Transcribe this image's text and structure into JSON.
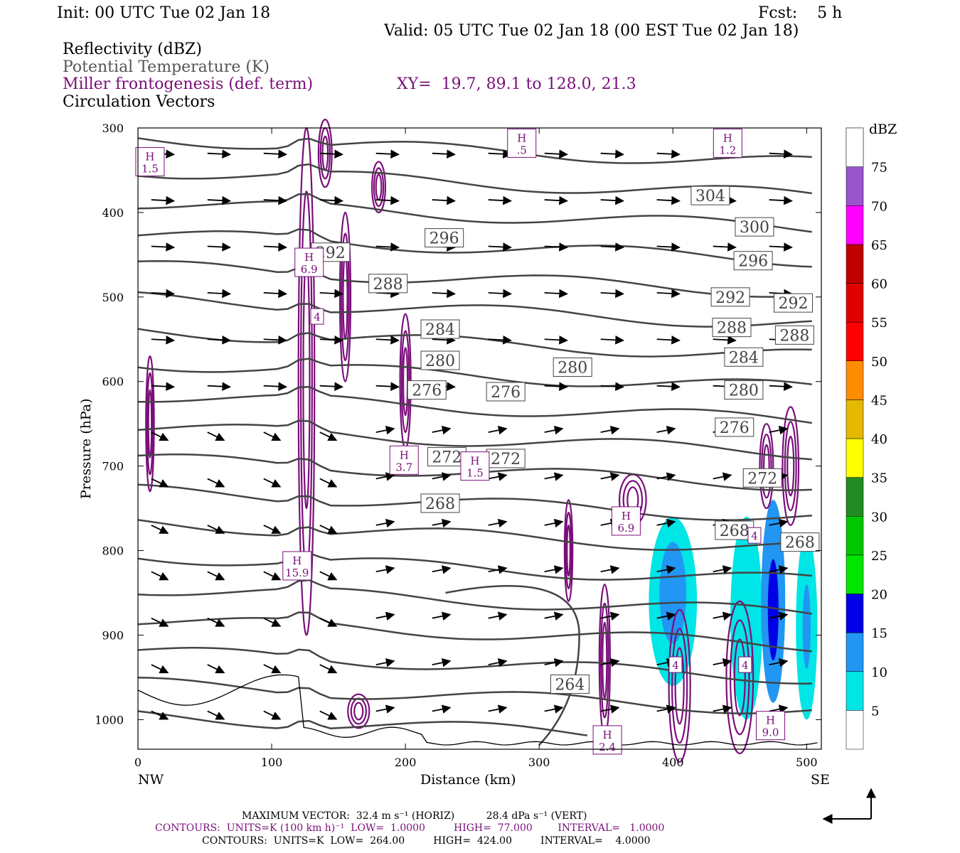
{
  "header": {
    "init": "Init: 00 UTC Tue 02 Jan 18",
    "fcst": "Fcst:    5 h",
    "valid": "Valid: 05 UTC Tue 02 Jan 18 (00 EST Tue 02 Jan 18)",
    "field1": "Reflectivity (dBZ)",
    "field2": "Potential Temperature (K)",
    "field3": "Miller frontogenesis (def. term)",
    "xy": "XY=  19.7, 89.1 to 128.0, 21.3",
    "field4": "Circulation Vectors"
  },
  "axes": {
    "ylabel": "Pressure (hPa)",
    "xlabel": "Distance (km)",
    "left_end": "NW",
    "right_end": "SE"
  },
  "colorbar": {
    "title": "dBZ",
    "levels": [
      "5",
      "10",
      "15",
      "20",
      "25",
      "30",
      "35",
      "40",
      "45",
      "50",
      "55",
      "60",
      "65",
      "70",
      "75"
    ],
    "colors": [
      "#00e5e5",
      "#2196f3",
      "#0000e6",
      "#00e600",
      "#00c800",
      "#228b22",
      "#ffff00",
      "#e6b800",
      "#ff8c00",
      "#ff0000",
      "#e00000",
      "#c00000",
      "#ff00ff",
      "#9955cc",
      "#ffffff"
    ]
  },
  "footer": {
    "line1": "MAXIMUM VECTOR:  32.4 m s⁻¹ (HORIZ)          28.4 dPa s⁻¹ (VERT)",
    "line2": "CONTOURS:  UNITS=K (100 km h)⁻¹  LOW=  1.0000         HIGH=  77.000        INTERVAL=   1.0000",
    "line3": "CONTOURS:  UNITS=K  LOW=  264.00         HIGH=  424.00         INTERVAL=    4.0000"
  },
  "chart_data": {
    "type": "cross-section",
    "x_axis": {
      "label": "Distance (km)",
      "range": [
        0,
        511
      ],
      "ticks": [
        0,
        100,
        200,
        300,
        400,
        500
      ]
    },
    "y_axis": {
      "label": "Pressure (hPa)",
      "range": [
        300,
        1035
      ],
      "ticks": [
        300,
        400,
        500,
        600,
        700,
        800,
        900,
        1000
      ],
      "inverted": true
    },
    "theta_labels": [
      {
        "text": "304",
        "x": 428,
        "p": 380
      },
      {
        "text": "300",
        "x": 461,
        "p": 417
      },
      {
        "text": "296",
        "x": 229,
        "p": 430
      },
      {
        "text": "296",
        "x": 460,
        "p": 457
      },
      {
        "text": "292",
        "x": 144,
        "p": 447
      },
      {
        "text": "292",
        "x": 443,
        "p": 500
      },
      {
        "text": "292",
        "x": 490,
        "p": 507
      },
      {
        "text": "288",
        "x": 187,
        "p": 484
      },
      {
        "text": "288",
        "x": 444,
        "p": 536
      },
      {
        "text": "288",
        "x": 491,
        "p": 545
      },
      {
        "text": "284",
        "x": 226,
        "p": 538
      },
      {
        "text": "284",
        "x": 453,
        "p": 571
      },
      {
        "text": "280",
        "x": 226,
        "p": 575
      },
      {
        "text": "280",
        "x": 325,
        "p": 583
      },
      {
        "text": "280",
        "x": 453,
        "p": 610
      },
      {
        "text": "276",
        "x": 216,
        "p": 610
      },
      {
        "text": "276",
        "x": 275,
        "p": 612
      },
      {
        "text": "276",
        "x": 446,
        "p": 654
      },
      {
        "text": "272",
        "x": 231,
        "p": 689
      },
      {
        "text": "272",
        "x": 275,
        "p": 691
      },
      {
        "text": "272",
        "x": 467,
        "p": 714
      },
      {
        "text": "268",
        "x": 226,
        "p": 744
      },
      {
        "text": "268",
        "x": 446,
        "p": 776
      },
      {
        "text": "268",
        "x": 495,
        "p": 790
      },
      {
        "text": "264",
        "x": 323,
        "p": 958
      }
    ],
    "frontogenesis_maxima": [
      {
        "label": "H",
        "value": "1.5",
        "x": 9,
        "p": 340
      },
      {
        "label": "H",
        "value": ".5",
        "x": 287,
        "p": 318
      },
      {
        "label": "H",
        "value": "1.2",
        "x": 441,
        "p": 318
      },
      {
        "label": "H",
        "value": "6.9",
        "x": 128,
        "p": 459
      },
      {
        "label": "H",
        "value": "3.7",
        "x": 199,
        "p": 693
      },
      {
        "label": "H",
        "value": "1.5",
        "x": 252,
        "p": 700
      },
      {
        "label": "H",
        "value": "6.9",
        "x": 365,
        "p": 765
      },
      {
        "label": "H",
        "value": "15.9",
        "x": 119,
        "p": 818
      },
      {
        "label": "H",
        "value": "2.4",
        "x": 351,
        "p": 1024
      },
      {
        "label": "H",
        "value": "9.0",
        "x": 473,
        "p": 1007
      }
    ],
    "frontogenesis_other_labels": [
      {
        "text": "4",
        "x": 134,
        "p": 523
      },
      {
        "text": "4",
        "x": 402,
        "p": 935
      },
      {
        "text": "4",
        "x": 454,
        "p": 935
      },
      {
        "text": "4",
        "x": 461,
        "p": 782
      }
    ],
    "max_vector_horiz": "32.4 m s-1",
    "max_vector_vert": "28.4 dPa s-1",
    "theta_contour_low": 264,
    "theta_contour_high": 424,
    "theta_contour_interval": 4,
    "frontogenesis_contour_low": 1,
    "frontogenesis_contour_high": 77,
    "frontogenesis_contour_interval": 1
  }
}
